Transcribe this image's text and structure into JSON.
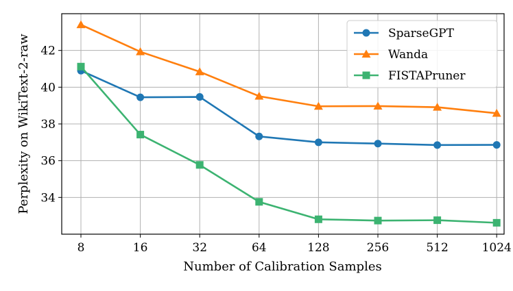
{
  "chart_data": {
    "type": "line",
    "xlabel": "Number of Calibration Samples",
    "ylabel": "Perplexity on WikiText-2-raw",
    "categories": [
      "8",
      "16",
      "32",
      "64",
      "128",
      "256",
      "512",
      "1024"
    ],
    "ylim": [
      32.0,
      44.0
    ],
    "yticks": [
      "34",
      "36",
      "38",
      "40",
      "42"
    ],
    "grid": true,
    "legend_position": "top-right",
    "series": [
      {
        "name": "SparseGPT",
        "color": "#1f77b4",
        "marker": "circle",
        "values": [
          40.9,
          39.45,
          39.47,
          37.32,
          37.0,
          36.93,
          36.85,
          36.86
        ]
      },
      {
        "name": "Wanda",
        "color": "#ff7f0e",
        "marker": "triangle",
        "values": [
          43.4,
          41.93,
          40.84,
          39.51,
          38.96,
          38.97,
          38.91,
          38.58
        ]
      },
      {
        "name": "FISTAPruner",
        "color": "#3cb371",
        "marker": "square",
        "values": [
          41.12,
          37.42,
          35.77,
          33.76,
          32.81,
          32.74,
          32.76,
          32.62
        ]
      }
    ]
  }
}
